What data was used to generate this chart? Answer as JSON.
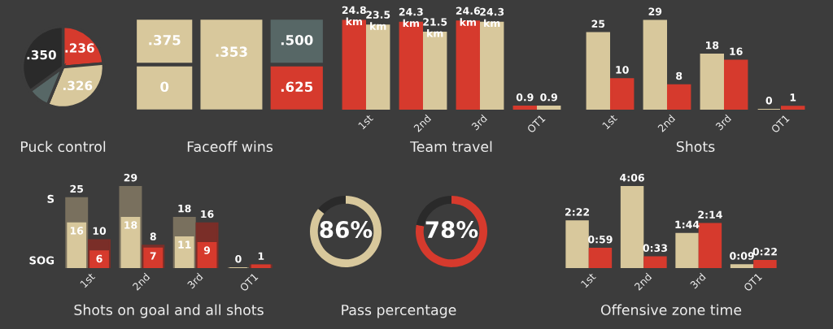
{
  "chart_data": [
    {
      "type": "pie",
      "title": "Puck control",
      "categories": [
        null,
        null,
        null,
        null
      ],
      "values": [
        0.236,
        0.326,
        0.088,
        0.35
      ],
      "value_labels": [
        ".236",
        ".326",
        null,
        ".350"
      ],
      "colors": [
        "#d63a2d",
        "#d8c89c",
        "#576766",
        "#2a2a2a"
      ]
    },
    {
      "type": "other",
      "title": "Faceoff wins",
      "data_labels": true,
      "categories": [
        null,
        null,
        null,
        null,
        null
      ],
      "value_labels": [
        ".375",
        "0",
        ".353",
        ".500",
        ".625"
      ],
      "colors": [
        "#d8c89c",
        "#d8c89c",
        "#d8c89c",
        "#576766",
        "#d63a2d"
      ]
    },
    {
      "type": "bar",
      "title": "Team travel",
      "categories": [
        "1st",
        "2nd",
        "3rd",
        "OT1"
      ],
      "series": [
        {
          "color": "#d63a2d",
          "values": [
            24.8,
            24.3,
            24.6,
            0.9
          ],
          "value_labels": [
            "24.8\nkm",
            "24.3\nkm",
            "24.6\nkm",
            "0.9"
          ]
        },
        {
          "color": "#d8c89c",
          "values": [
            23.5,
            21.5,
            24.3,
            0.9
          ],
          "value_labels": [
            "23.5\nkm",
            "21.5\nkm",
            "24.3\nkm",
            "0.9"
          ]
        }
      ]
    },
    {
      "type": "bar",
      "title": "Shots",
      "categories": [
        "1st",
        "2nd",
        "3rd",
        "OT1"
      ],
      "data_labels": true,
      "series": [
        {
          "color": "#d8c89c",
          "values": [
            25,
            29,
            18,
            0
          ]
        },
        {
          "color": "#d63a2d",
          "values": [
            10,
            8,
            16,
            1
          ]
        }
      ]
    },
    {
      "type": "bar",
      "title": "Shots on goal and all shots",
      "categories": [
        "1st",
        "2nd",
        "3rd",
        "OT1"
      ],
      "annotations": [
        "S",
        "SOG"
      ],
      "series": [
        {
          "color": "#79705e",
          "values": [
            25,
            29,
            18,
            0
          ],
          "value_labels": [
            "25",
            "29",
            "18",
            "0"
          ]
        },
        {
          "color": "#d8c89c",
          "values": [
            16,
            18,
            11,
            0
          ],
          "value_labels": [
            "16",
            "18",
            "11",
            null
          ]
        },
        {
          "color": "#7a2e28",
          "values": [
            10,
            8,
            16,
            1
          ],
          "value_labels": [
            "10",
            "8",
            "16",
            "1"
          ]
        },
        {
          "color": "#d63a2d",
          "values": [
            6,
            7,
            9,
            1
          ],
          "value_labels": [
            "6",
            "7",
            "9",
            null
          ]
        }
      ]
    },
    {
      "type": "donut",
      "title": "Pass percentage",
      "categories": [
        null,
        null
      ],
      "values": [
        86,
        14
      ],
      "colors": [
        "#d8c89c",
        "#2a2a2a"
      ],
      "annotations": [
        "86%"
      ]
    },
    {
      "type": "donut",
      "categories": [
        null,
        null
      ],
      "values": [
        78,
        22
      ],
      "colors": [
        "#d63a2d",
        "#2a2a2a"
      ],
      "annotations": [
        "78%"
      ]
    },
    {
      "type": "bar",
      "title": "Offensive zone time",
      "categories": [
        "1st",
        "2nd",
        "3rd",
        "OT1"
      ],
      "series": [
        {
          "color": "#d8c89c",
          "values": [
            142,
            246,
            104,
            9
          ],
          "value_labels": [
            "2:22",
            "4:06",
            "1:44",
            "0:09"
          ]
        },
        {
          "color": "#d63a2d",
          "values": [
            59,
            33,
            134,
            22
          ],
          "value_labels": [
            "0:59",
            "0:33",
            "2:14",
            "0:22"
          ]
        }
      ]
    }
  ]
}
